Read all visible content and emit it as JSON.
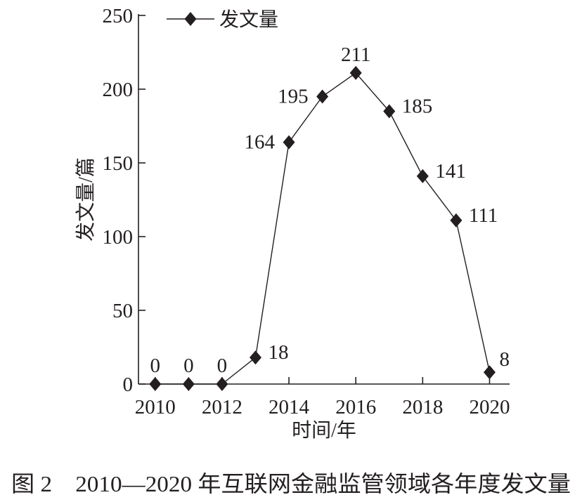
{
  "chart_data": {
    "type": "line",
    "x": [
      2010,
      2011,
      2012,
      2013,
      2014,
      2015,
      2016,
      2017,
      2018,
      2019,
      2020
    ],
    "series": [
      {
        "name": "发文量",
        "values": [
          0,
          0,
          0,
          18,
          164,
          195,
          211,
          185,
          141,
          111,
          8
        ],
        "marker": "diamond",
        "color": "#231f20"
      }
    ],
    "data_label_placement": [
      "above",
      "above",
      "above",
      "right",
      "left",
      "left",
      "above",
      "right",
      "right",
      "right",
      "above-right"
    ],
    "xlabel": "时间/年",
    "ylabel": "发文量/篇",
    "xticks": [
      2010,
      2012,
      2014,
      2016,
      2018,
      2020
    ],
    "yticks": [
      0,
      50,
      100,
      150,
      200,
      250
    ],
    "xlim": [
      2009.5,
      2020.6
    ],
    "ylim": [
      0,
      250
    ],
    "grid": false,
    "legend": "top-left",
    "caption": "图 2　2010—2020 年互联网金融监管领域各年度发文量"
  }
}
